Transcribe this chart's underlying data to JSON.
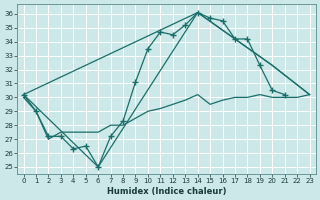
{
  "xlabel": "Humidex (Indice chaleur)",
  "bg_color": "#cce8e8",
  "grid_color": "#ffffff",
  "line_color": "#1a6e6a",
  "xlim": [
    -0.5,
    23.5
  ],
  "ylim": [
    24.5,
    36.7
  ],
  "xticks": [
    0,
    1,
    2,
    3,
    4,
    5,
    6,
    7,
    8,
    9,
    10,
    11,
    12,
    13,
    14,
    15,
    16,
    17,
    18,
    19,
    20,
    21,
    22,
    23
  ],
  "yticks": [
    25,
    26,
    27,
    28,
    29,
    30,
    31,
    32,
    33,
    34,
    35,
    36
  ],
  "curve1_x": [
    0,
    1,
    2,
    3,
    4,
    5,
    6,
    7,
    8,
    9,
    10,
    11,
    12,
    13,
    14,
    15,
    16,
    17,
    18,
    19,
    20,
    21
  ],
  "curve1_y": [
    30.2,
    29.0,
    27.2,
    27.2,
    26.3,
    26.5,
    25.0,
    27.2,
    28.3,
    31.1,
    33.5,
    34.7,
    34.5,
    35.2,
    36.1,
    35.7,
    35.5,
    34.2,
    34.2,
    32.3,
    30.5,
    30.2
  ],
  "curve2_x": [
    0,
    1,
    2,
    3,
    4,
    5,
    6,
    7,
    8,
    9,
    10,
    11,
    12,
    13,
    14,
    15,
    16,
    17,
    18,
    19,
    20,
    21,
    22,
    23
  ],
  "curve2_y": [
    30.0,
    29.0,
    27.0,
    27.5,
    27.5,
    27.5,
    27.5,
    28.0,
    28.0,
    28.5,
    29.0,
    29.2,
    29.5,
    29.8,
    30.2,
    29.5,
    29.8,
    30.0,
    30.0,
    30.2,
    30.0,
    30.0,
    30.0,
    30.2
  ],
  "curve3_x": [
    0,
    14,
    20,
    23
  ],
  "curve3_y": [
    30.2,
    36.1,
    32.3,
    30.2
  ],
  "curve4_x": [
    0,
    6,
    14,
    20,
    23
  ],
  "curve4_y": [
    30.2,
    25.0,
    36.1,
    32.3,
    30.2
  ]
}
